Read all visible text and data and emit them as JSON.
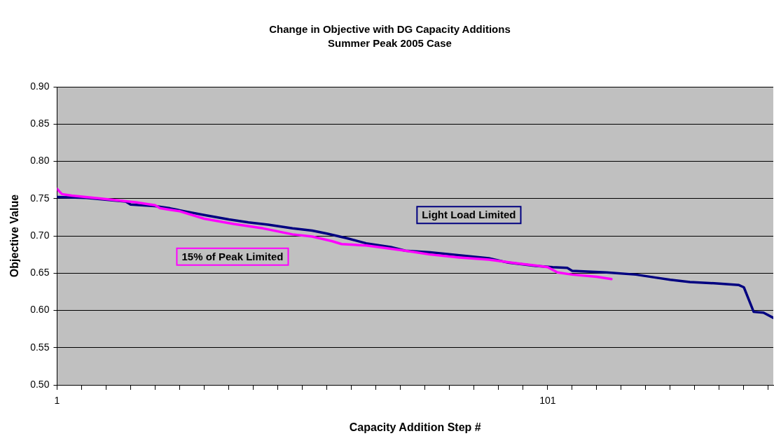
{
  "chart_data": {
    "type": "line",
    "title": "Change in Objective with DG Capacity Additions",
    "subtitle": "Summer Peak 2005 Case",
    "xlabel": "Capacity Addition Step #",
    "ylabel": "Objective Value",
    "xlim": [
      1,
      147
    ],
    "xticks": [
      {
        "value": 1,
        "label": "1"
      },
      {
        "value": 6,
        "label": null
      },
      {
        "value": 11,
        "label": null
      },
      {
        "value": 16,
        "label": null
      },
      {
        "value": 21,
        "label": null
      },
      {
        "value": 26,
        "label": null
      },
      {
        "value": 31,
        "label": null
      },
      {
        "value": 36,
        "label": null
      },
      {
        "value": 41,
        "label": null
      },
      {
        "value": 46,
        "label": null
      },
      {
        "value": 51,
        "label": null
      },
      {
        "value": 56,
        "label": null
      },
      {
        "value": 61,
        "label": null
      },
      {
        "value": 66,
        "label": null
      },
      {
        "value": 71,
        "label": null
      },
      {
        "value": 76,
        "label": null
      },
      {
        "value": 81,
        "label": null
      },
      {
        "value": 86,
        "label": null
      },
      {
        "value": 91,
        "label": null
      },
      {
        "value": 96,
        "label": null
      },
      {
        "value": 101,
        "label": "101"
      },
      {
        "value": 106,
        "label": null
      },
      {
        "value": 111,
        "label": null
      },
      {
        "value": 116,
        "label": null
      },
      {
        "value": 121,
        "label": null
      },
      {
        "value": 126,
        "label": null
      },
      {
        "value": 131,
        "label": null
      },
      {
        "value": 136,
        "label": null
      },
      {
        "value": 141,
        "label": null
      },
      {
        "value": 146,
        "label": null
      }
    ],
    "ylim": [
      0.5,
      0.9
    ],
    "yticks": [
      {
        "value": 0.5,
        "label": "0.50"
      },
      {
        "value": 0.55,
        "label": "0.55"
      },
      {
        "value": 0.6,
        "label": "0.60"
      },
      {
        "value": 0.65,
        "label": "0.65"
      },
      {
        "value": 0.7,
        "label": "0.70"
      },
      {
        "value": 0.75,
        "label": "0.75"
      },
      {
        "value": 0.8,
        "label": "0.80"
      },
      {
        "value": 0.85,
        "label": "0.85"
      },
      {
        "value": 0.9,
        "label": "0.90"
      }
    ],
    "grid": "y",
    "legend": false,
    "marker": "none",
    "line_style": "solid",
    "series": [
      {
        "name": "Light Load Limited",
        "color": "#000080",
        "x": [
          1,
          7,
          15,
          16,
          21,
          24,
          27,
          31,
          36,
          40,
          44,
          49,
          53,
          56,
          60,
          64,
          69,
          72,
          77,
          83,
          89,
          93,
          98,
          102,
          105,
          106,
          113,
          119,
          123,
          126,
          130,
          136,
          140,
          141,
          143,
          145,
          147
        ],
        "values": [
          0.752,
          0.751,
          0.746,
          0.742,
          0.74,
          0.737,
          0.733,
          0.728,
          0.722,
          0.718,
          0.715,
          0.71,
          0.707,
          0.703,
          0.697,
          0.69,
          0.685,
          0.68,
          0.678,
          0.674,
          0.67,
          0.664,
          0.66,
          0.658,
          0.657,
          0.653,
          0.651,
          0.648,
          0.644,
          0.641,
          0.638,
          0.636,
          0.634,
          0.631,
          0.598,
          0.597,
          0.59
        ]
      },
      {
        "name": "15% of Peak Limited",
        "color": "#ff00ff",
        "x": [
          1,
          2,
          4,
          10,
          17,
          21,
          22,
          24,
          26,
          31,
          37,
          43,
          49,
          53,
          57,
          59,
          64,
          72,
          77,
          83,
          89,
          95,
          100,
          101,
          103,
          106,
          111,
          114
        ],
        "values": [
          0.763,
          0.756,
          0.754,
          0.75,
          0.745,
          0.741,
          0.737,
          0.735,
          0.733,
          0.723,
          0.716,
          0.71,
          0.702,
          0.699,
          0.693,
          0.689,
          0.687,
          0.68,
          0.675,
          0.671,
          0.668,
          0.663,
          0.659,
          0.658,
          0.651,
          0.648,
          0.645,
          0.642
        ]
      }
    ]
  }
}
